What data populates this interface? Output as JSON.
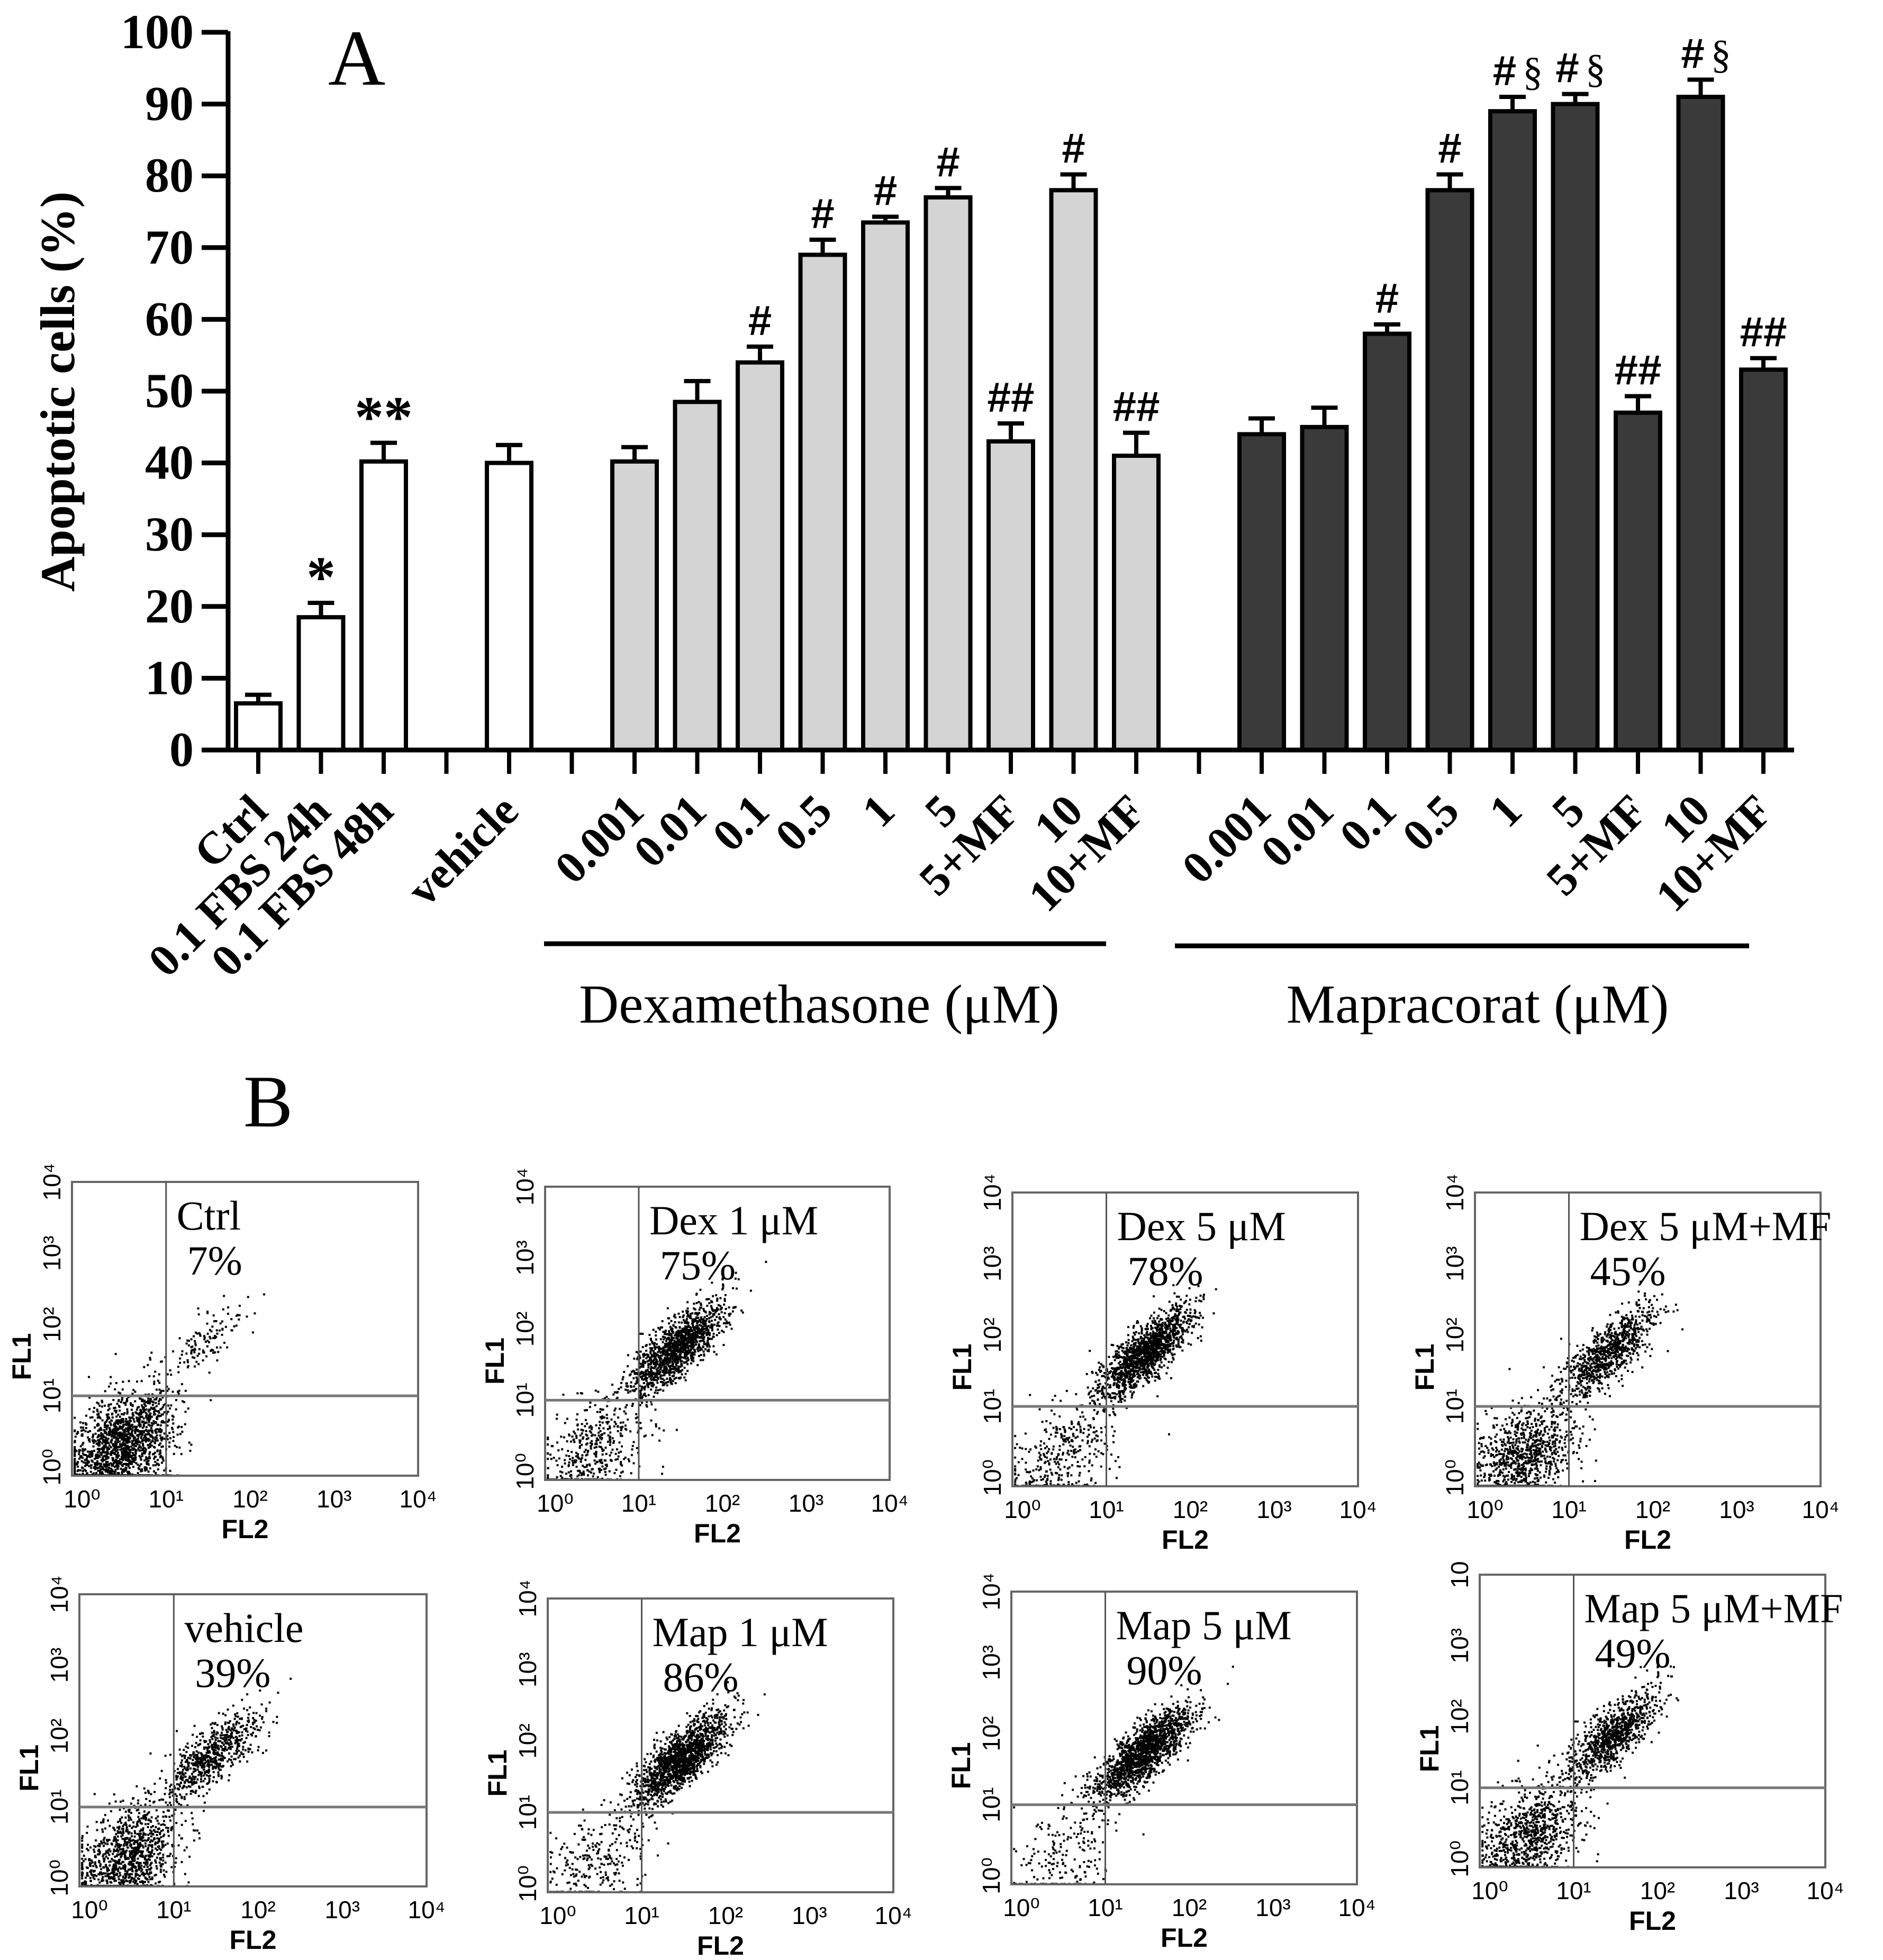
{
  "chart_data": [
    {
      "panel": "A",
      "type": "bar",
      "panel_label": "A",
      "ylabel": "Apoptotic cells (%)",
      "ylim": [
        0,
        100
      ],
      "yticks": [
        0,
        10,
        20,
        30,
        40,
        50,
        60,
        70,
        80,
        90,
        100
      ],
      "ytick_labels": [
        "0",
        "10",
        "20",
        "30",
        "40",
        "50",
        "60",
        "70",
        "80",
        "90",
        "100"
      ],
      "grid": false,
      "slot_count": 25,
      "groups": [
        {
          "name": "Dexamethasone (μM)",
          "label": "Dexamethasone (μM)",
          "first_slot": 6,
          "last_slot": 14
        },
        {
          "name": "Mapracorat (μM)",
          "label": "Mapracorat (μM)",
          "first_slot": 16,
          "last_slot": 24
        }
      ],
      "fill_colors": {
        "white": "#ffffff",
        "dex": "#d4d4d4",
        "map": "#3a3a3a"
      },
      "bars": [
        {
          "slot": 0,
          "category": "Ctrl",
          "value": 6.5,
          "error": 1.2,
          "fill": "white",
          "annotation": ""
        },
        {
          "slot": 1,
          "category": "0.1 FBS 24h",
          "value": 18.5,
          "error": 2.0,
          "fill": "white",
          "annotation": "*"
        },
        {
          "slot": 2,
          "category": "0.1 FBS 48h",
          "value": 40.2,
          "error": 2.6,
          "fill": "white",
          "annotation": "**"
        },
        {
          "slot": 4,
          "category": "vehicle",
          "value": 40.0,
          "error": 2.5,
          "fill": "white",
          "annotation": ""
        },
        {
          "slot": 6,
          "category": "0.001",
          "value": 40.2,
          "error": 2.0,
          "fill": "dex",
          "annotation": ""
        },
        {
          "slot": 7,
          "category": "0.01",
          "value": 48.5,
          "error": 2.9,
          "fill": "dex",
          "annotation": ""
        },
        {
          "slot": 8,
          "category": "0.1",
          "value": 54.0,
          "error": 2.2,
          "fill": "dex",
          "annotation": "#"
        },
        {
          "slot": 9,
          "category": "0.5",
          "value": 69.0,
          "error": 2.1,
          "fill": "dex",
          "annotation": "#"
        },
        {
          "slot": 10,
          "category": "1",
          "value": 73.5,
          "error": 0.8,
          "fill": "dex",
          "annotation": "#"
        },
        {
          "slot": 11,
          "category": "5",
          "value": 77.0,
          "error": 1.3,
          "fill": "dex",
          "annotation": "#"
        },
        {
          "slot": 12,
          "category": "5+MF",
          "value": 43.0,
          "error": 2.5,
          "fill": "dex",
          "annotation": "##"
        },
        {
          "slot": 13,
          "category": "10",
          "value": 78.0,
          "error": 2.2,
          "fill": "dex",
          "annotation": "#"
        },
        {
          "slot": 14,
          "category": "10+MF",
          "value": 41.0,
          "error": 3.2,
          "fill": "dex",
          "annotation": "##"
        },
        {
          "slot": 16,
          "category": "0.001",
          "value": 44.0,
          "error": 2.2,
          "fill": "map",
          "annotation": ""
        },
        {
          "slot": 17,
          "category": "0.01",
          "value": 45.0,
          "error": 2.7,
          "fill": "map",
          "annotation": ""
        },
        {
          "slot": 18,
          "category": "0.1",
          "value": 58.0,
          "error": 1.3,
          "fill": "map",
          "annotation": "#"
        },
        {
          "slot": 19,
          "category": "0.5",
          "value": 78.0,
          "error": 2.2,
          "fill": "map",
          "annotation": "#"
        },
        {
          "slot": 20,
          "category": "1",
          "value": 89.0,
          "error": 2.0,
          "fill": "map",
          "annotation": "#§"
        },
        {
          "slot": 21,
          "category": "5",
          "value": 90.0,
          "error": 1.4,
          "fill": "map",
          "annotation": "#§"
        },
        {
          "slot": 22,
          "category": "5+MF",
          "value": 47.0,
          "error": 2.3,
          "fill": "map",
          "annotation": "##"
        },
        {
          "slot": 23,
          "category": "10",
          "value": 91.0,
          "error": 2.4,
          "fill": "map",
          "annotation": "#§"
        },
        {
          "slot": 24,
          "category": "10+MF",
          "value": 53.0,
          "error": 1.6,
          "fill": "map",
          "annotation": "##"
        }
      ]
    },
    {
      "panel": "B",
      "type": "scatter",
      "panel_label": "B",
      "xlabel": "FL2",
      "ylabel": "FL1",
      "xscale": "log",
      "yscale": "log",
      "xlim": [
        1,
        10000
      ],
      "ylim": [
        1,
        10000
      ],
      "xtick_labels": [
        "10⁰",
        "10¹",
        "10²",
        "10³",
        "10⁴"
      ],
      "ytick_labels": [
        "10⁰",
        "10¹",
        "10²",
        "10³",
        "10⁴"
      ],
      "gate": {
        "fl2": 10,
        "fl1": 10
      },
      "plots": [
        {
          "name": "Ctrl",
          "label": "Ctrl",
          "percent": "7%",
          "apoptotic_percent": 7,
          "row": 0,
          "col": 0,
          "y_top_label": "10⁴"
        },
        {
          "name": "Dex 1 μM",
          "label": "Dex 1 μM",
          "percent": "75%",
          "apoptotic_percent": 75,
          "row": 0,
          "col": 1,
          "y_top_label": "10⁴"
        },
        {
          "name": "Dex 5 μM",
          "label": "Dex 5 μM",
          "percent": "78%",
          "apoptotic_percent": 78,
          "row": 0,
          "col": 2,
          "y_top_label": "10⁴"
        },
        {
          "name": "Dex 5 μM+MF",
          "label": "Dex 5 μM+MF",
          "percent": "45%",
          "apoptotic_percent": 45,
          "row": 0,
          "col": 3,
          "y_top_label": "10⁴"
        },
        {
          "name": "vehicle",
          "label": "vehicle",
          "percent": "39%",
          "apoptotic_percent": 39,
          "row": 1,
          "col": 0,
          "y_top_label": "10⁴"
        },
        {
          "name": "Map 1 μM",
          "label": "Map 1 μM",
          "percent": "86%",
          "apoptotic_percent": 86,
          "row": 1,
          "col": 1,
          "y_top_label": "10⁴"
        },
        {
          "name": "Map 5 μM",
          "label": "Map 5 μM",
          "percent": "90%",
          "apoptotic_percent": 90,
          "row": 1,
          "col": 2,
          "y_top_label": "10⁴"
        },
        {
          "name": "Map 5 μM+MF",
          "label": "Map 5 μM+MF",
          "percent": "49%",
          "apoptotic_percent": 49,
          "row": 1,
          "col": 3,
          "y_top_label": "10"
        }
      ]
    }
  ]
}
